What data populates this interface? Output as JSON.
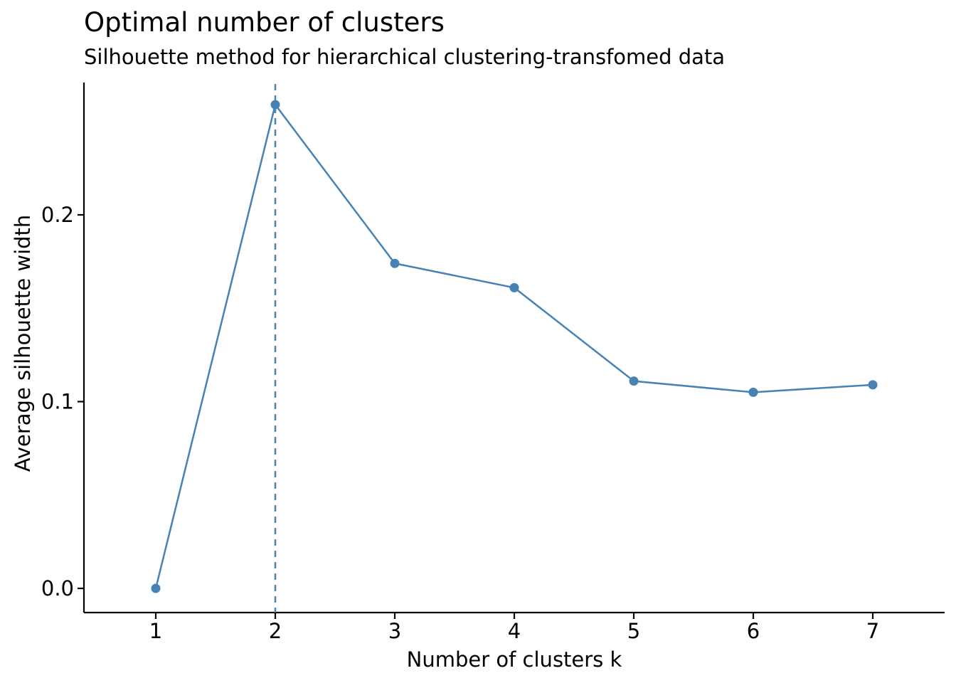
{
  "chart_data": {
    "type": "line",
    "title": "Optimal number of clusters",
    "subtitle": "Silhouette method for hierarchical clustering-transfomed data",
    "xlabel": "Number of clusters k",
    "ylabel": "Average silhouette width",
    "categories": [
      "1",
      "2",
      "3",
      "4",
      "5",
      "6",
      "7"
    ],
    "series": [
      {
        "values": [
          0.0,
          0.259,
          0.174,
          0.161,
          0.111,
          0.105,
          0.109
        ]
      }
    ],
    "ylim": [
      -0.013,
      0.272
    ],
    "yticks": [
      0.0,
      0.1,
      0.2
    ],
    "ytick_labels": [
      "0.0",
      "0.1",
      "0.2"
    ],
    "reference_line": {
      "type": "vertical",
      "x": "2",
      "style": "dashed"
    },
    "grid": false,
    "legend": "none",
    "colors": {
      "series": "#4682B4",
      "reference_line": "#4682B4",
      "axis": "#000000"
    }
  }
}
